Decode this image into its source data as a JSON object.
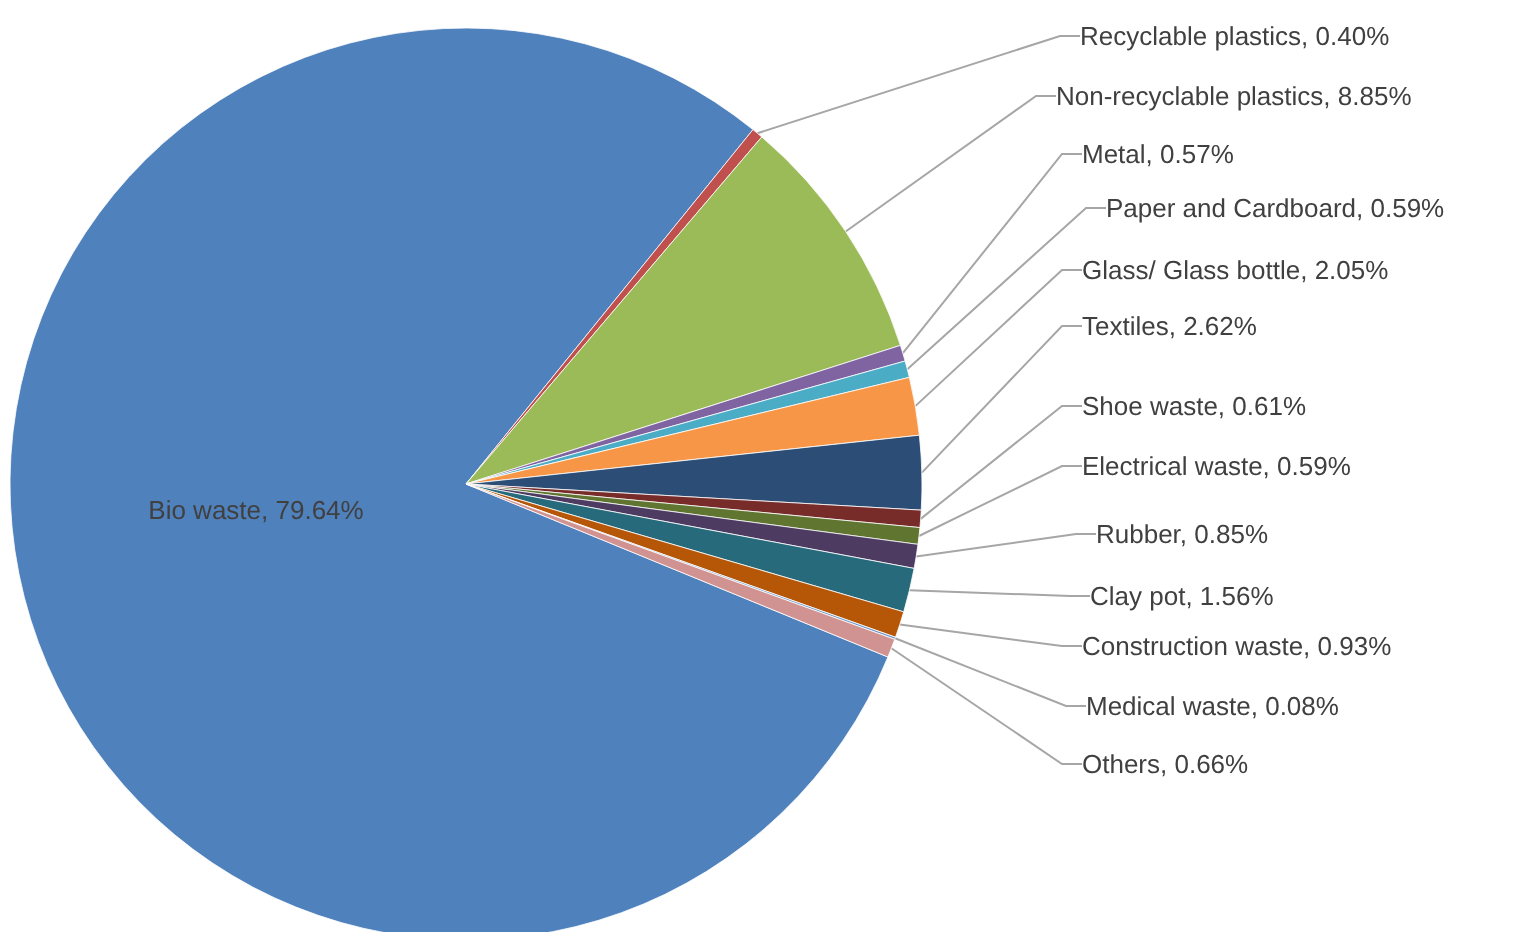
{
  "chart_data": {
    "type": "pie",
    "categories": [
      "Bio waste",
      "Recyclable plastics",
      "Non-recyclable plastics",
      "Metal",
      "Paper and Cardboard",
      "Glass/ Glass bottle",
      "Textiles",
      "Shoe waste",
      "Electrical waste",
      "Rubber",
      "Clay pot",
      "Construction waste",
      "Medical waste",
      "Others"
    ],
    "values": [
      79.64,
      0.4,
      8.85,
      0.57,
      0.59,
      2.05,
      2.62,
      0.61,
      0.59,
      0.85,
      1.56,
      0.93,
      0.08,
      0.66
    ],
    "colors": [
      "#4f81bd",
      "#c0504d",
      "#9bbb59",
      "#8064a2",
      "#4bacc6",
      "#f79646",
      "#2c4d75",
      "#772c2a",
      "#5f7530",
      "#4d3b62",
      "#276a7c",
      "#b65708",
      "#729aca",
      "#d19392"
    ],
    "value_labels": [
      "79.64%",
      "0.40%",
      "8.85%",
      "0.57%",
      "0.59%",
      "2.05%",
      "2.62%",
      "0.61%",
      "0.59%",
      "0.85%",
      "1.56%",
      "0.93%",
      "0.08%",
      "0.66%"
    ],
    "legend": false
  }
}
